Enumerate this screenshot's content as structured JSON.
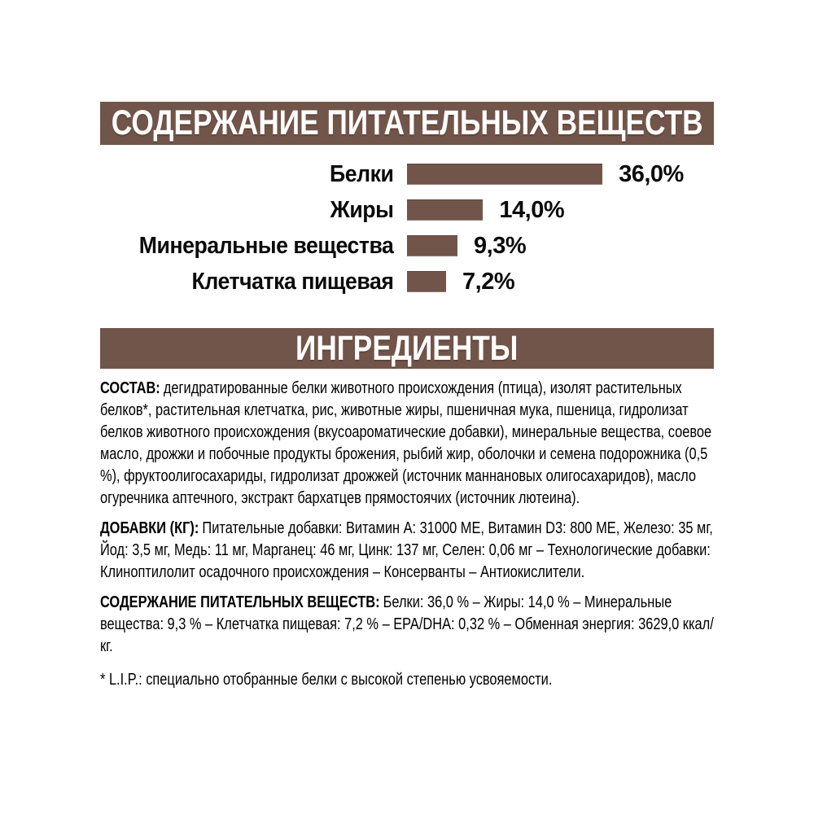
{
  "colors": {
    "brand_brown": "#72554A",
    "header_text": "#ffffff",
    "body_text": "#000000"
  },
  "sections": {
    "nutrients_title": "СОДЕРЖАНИЕ ПИТАТЕЛЬНЫХ ВЕЩЕСТВ",
    "ingredients_title": "ИНГРЕДИЕНТЫ"
  },
  "chart_data": {
    "type": "bar",
    "orientation": "horizontal",
    "categories": [
      "Белки",
      "Жиры",
      "Минеральные вещества",
      "Клетчатка пищевая"
    ],
    "values": [
      36.0,
      14.0,
      9.3,
      7.2
    ],
    "value_labels": [
      "36,0%",
      "14,0%",
      "9,3%",
      "7,2%"
    ],
    "unit": "%",
    "xlim": [
      0,
      36
    ],
    "bar_color": "#72554A",
    "grid": false,
    "legend": false
  },
  "paragraphs": [
    {
      "label": "СОСТАВ:",
      "text": "дегидратированные белки животного происхождения (птица), изолят растительных белков*, растительная клетчатка, рис, животные жиры, пшеничная мука, пшеница, гидролизат белков животного происхождения (вкусоароматические добавки), минеральные вещества, соевое масло, дрожжи и побочные продукты брожения, рыбий жир, оболочки и семена подорожника (0,5 %), фруктоолигосахариды, гидролизат дрожжей (источник маннановых олигосахаридов), масло огуречника аптечного, экстракт бархатцев прямостоячих (источник лютеина)."
    },
    {
      "label": "ДОБАВКИ (КГ):",
      "text": "Питательные добавки: Витамин A: 31000 МЕ, Витамин D3: 800 МЕ, Железо: 35 мг, Йод: 3,5 мг, Медь: 11 мг, Марганец: 46 мг, Цинк: 137 мг, Селен: 0,06 мг – Технологические добавки: Клиноптилолит осадочного происхождения – Консерванты – Антиокислители."
    },
    {
      "label": "СОДЕРЖАНИЕ ПИТАТЕЛЬНЫХ ВЕЩЕСТВ:",
      "text": "Белки: 36,0 % – Жиры: 14,0 % – Минеральные вещества: 9,3 % – Клетчатка пищевая: 7,2 % – EPA/DHA: 0,32 % – Обменная энергия: 3629,0 ккал/кг."
    }
  ],
  "footnote": "* L.I.P.: специально отобранные белки с высокой степенью усвояемости."
}
